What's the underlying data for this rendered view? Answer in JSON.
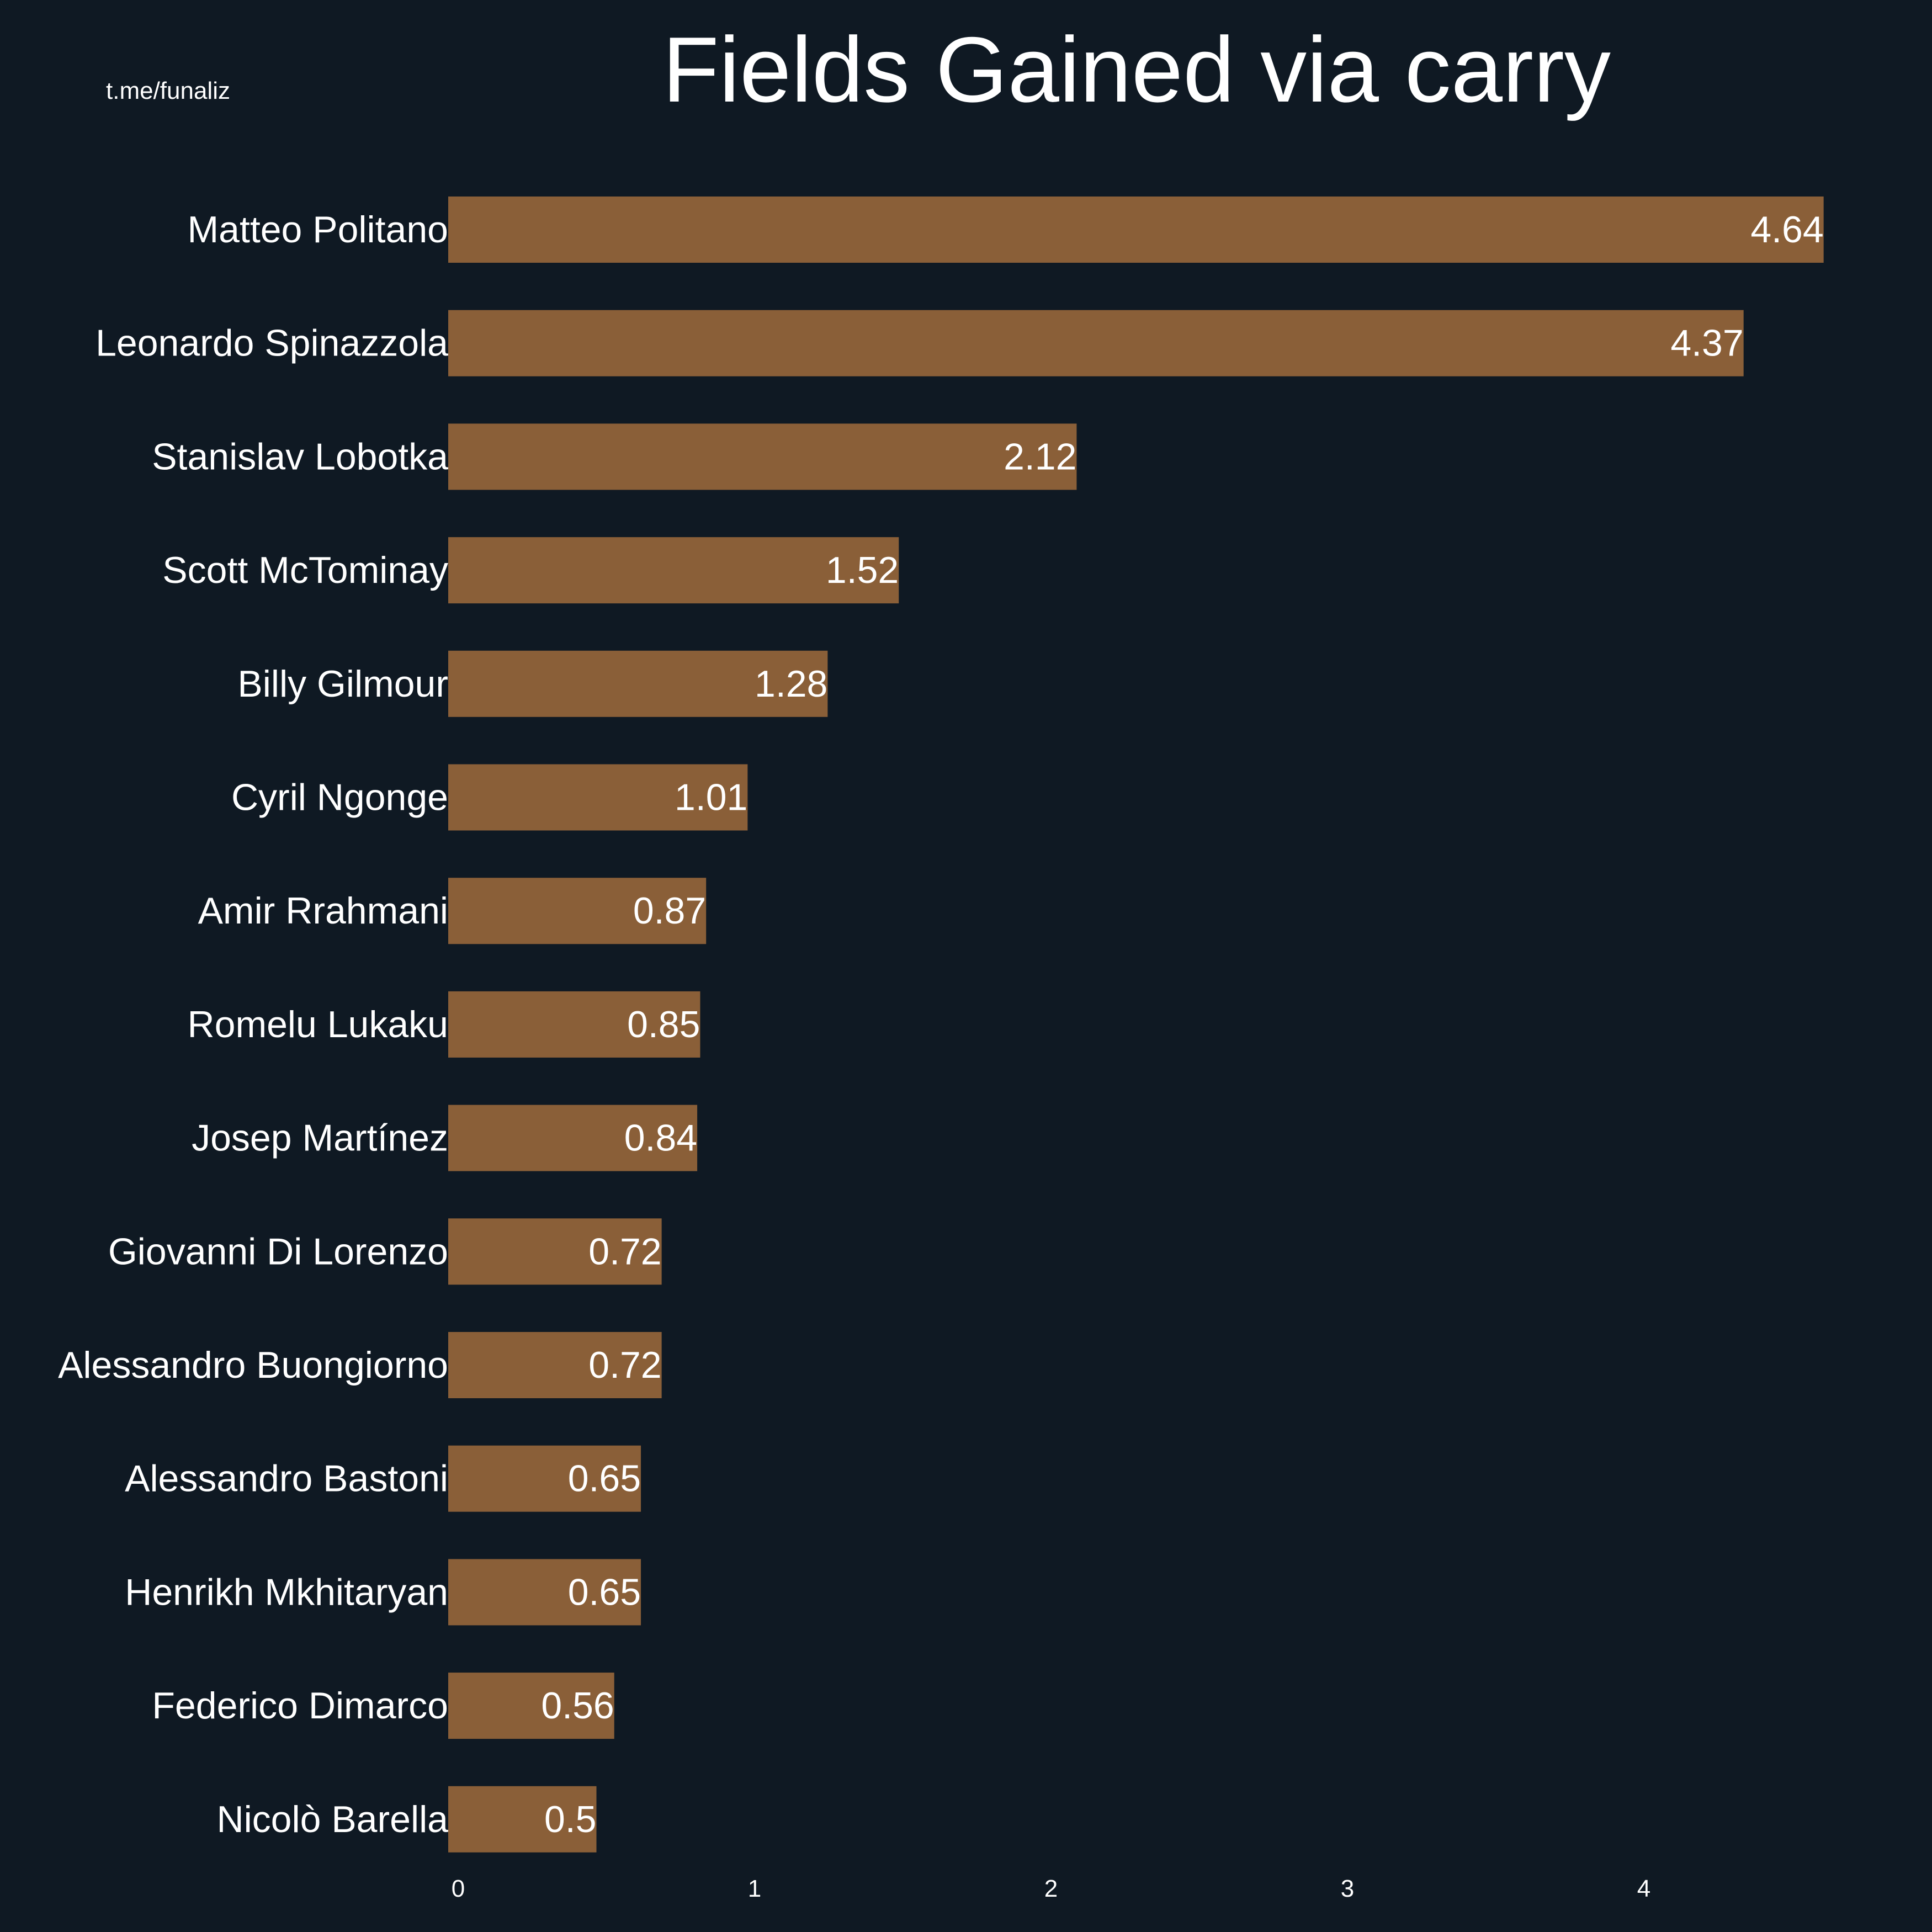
{
  "watermark": "t.me/funaliz",
  "colors": {
    "background": "#0f1923",
    "bar": "#8a5f38",
    "text": "#ffffff"
  },
  "chart_data": {
    "type": "bar",
    "orientation": "horizontal",
    "title": "Fields Gained via carry",
    "xlabel": "",
    "ylabel": "",
    "xlim": [
      0,
      4.87
    ],
    "xticks": [
      0,
      1,
      2,
      3,
      4
    ],
    "grid": false,
    "legend": "none",
    "categories": [
      "Matteo Politano",
      "Leonardo Spinazzola",
      "Stanislav Lobotka",
      "Scott McTominay",
      "Billy Gilmour",
      "Cyril Ngonge",
      "Amir Rrahmani",
      "Romelu Lukaku",
      "Josep Martínez",
      "Giovanni Di Lorenzo",
      "Alessandro Buongiorno",
      "Alessandro Bastoni",
      "Henrikh Mkhitaryan",
      "Federico Dimarco",
      "Nicolò Barella"
    ],
    "values": [
      4.64,
      4.37,
      2.12,
      1.52,
      1.28,
      1.01,
      0.87,
      0.85,
      0.84,
      0.72,
      0.72,
      0.65,
      0.65,
      0.56,
      0.5
    ],
    "value_labels": [
      "4.64",
      "4.37",
      "2.12",
      "1.52",
      "1.28",
      "1.01",
      "0.87",
      "0.85",
      "0.84",
      "0.72",
      "0.72",
      "0.65",
      "0.65",
      "0.56",
      "0.5"
    ]
  }
}
